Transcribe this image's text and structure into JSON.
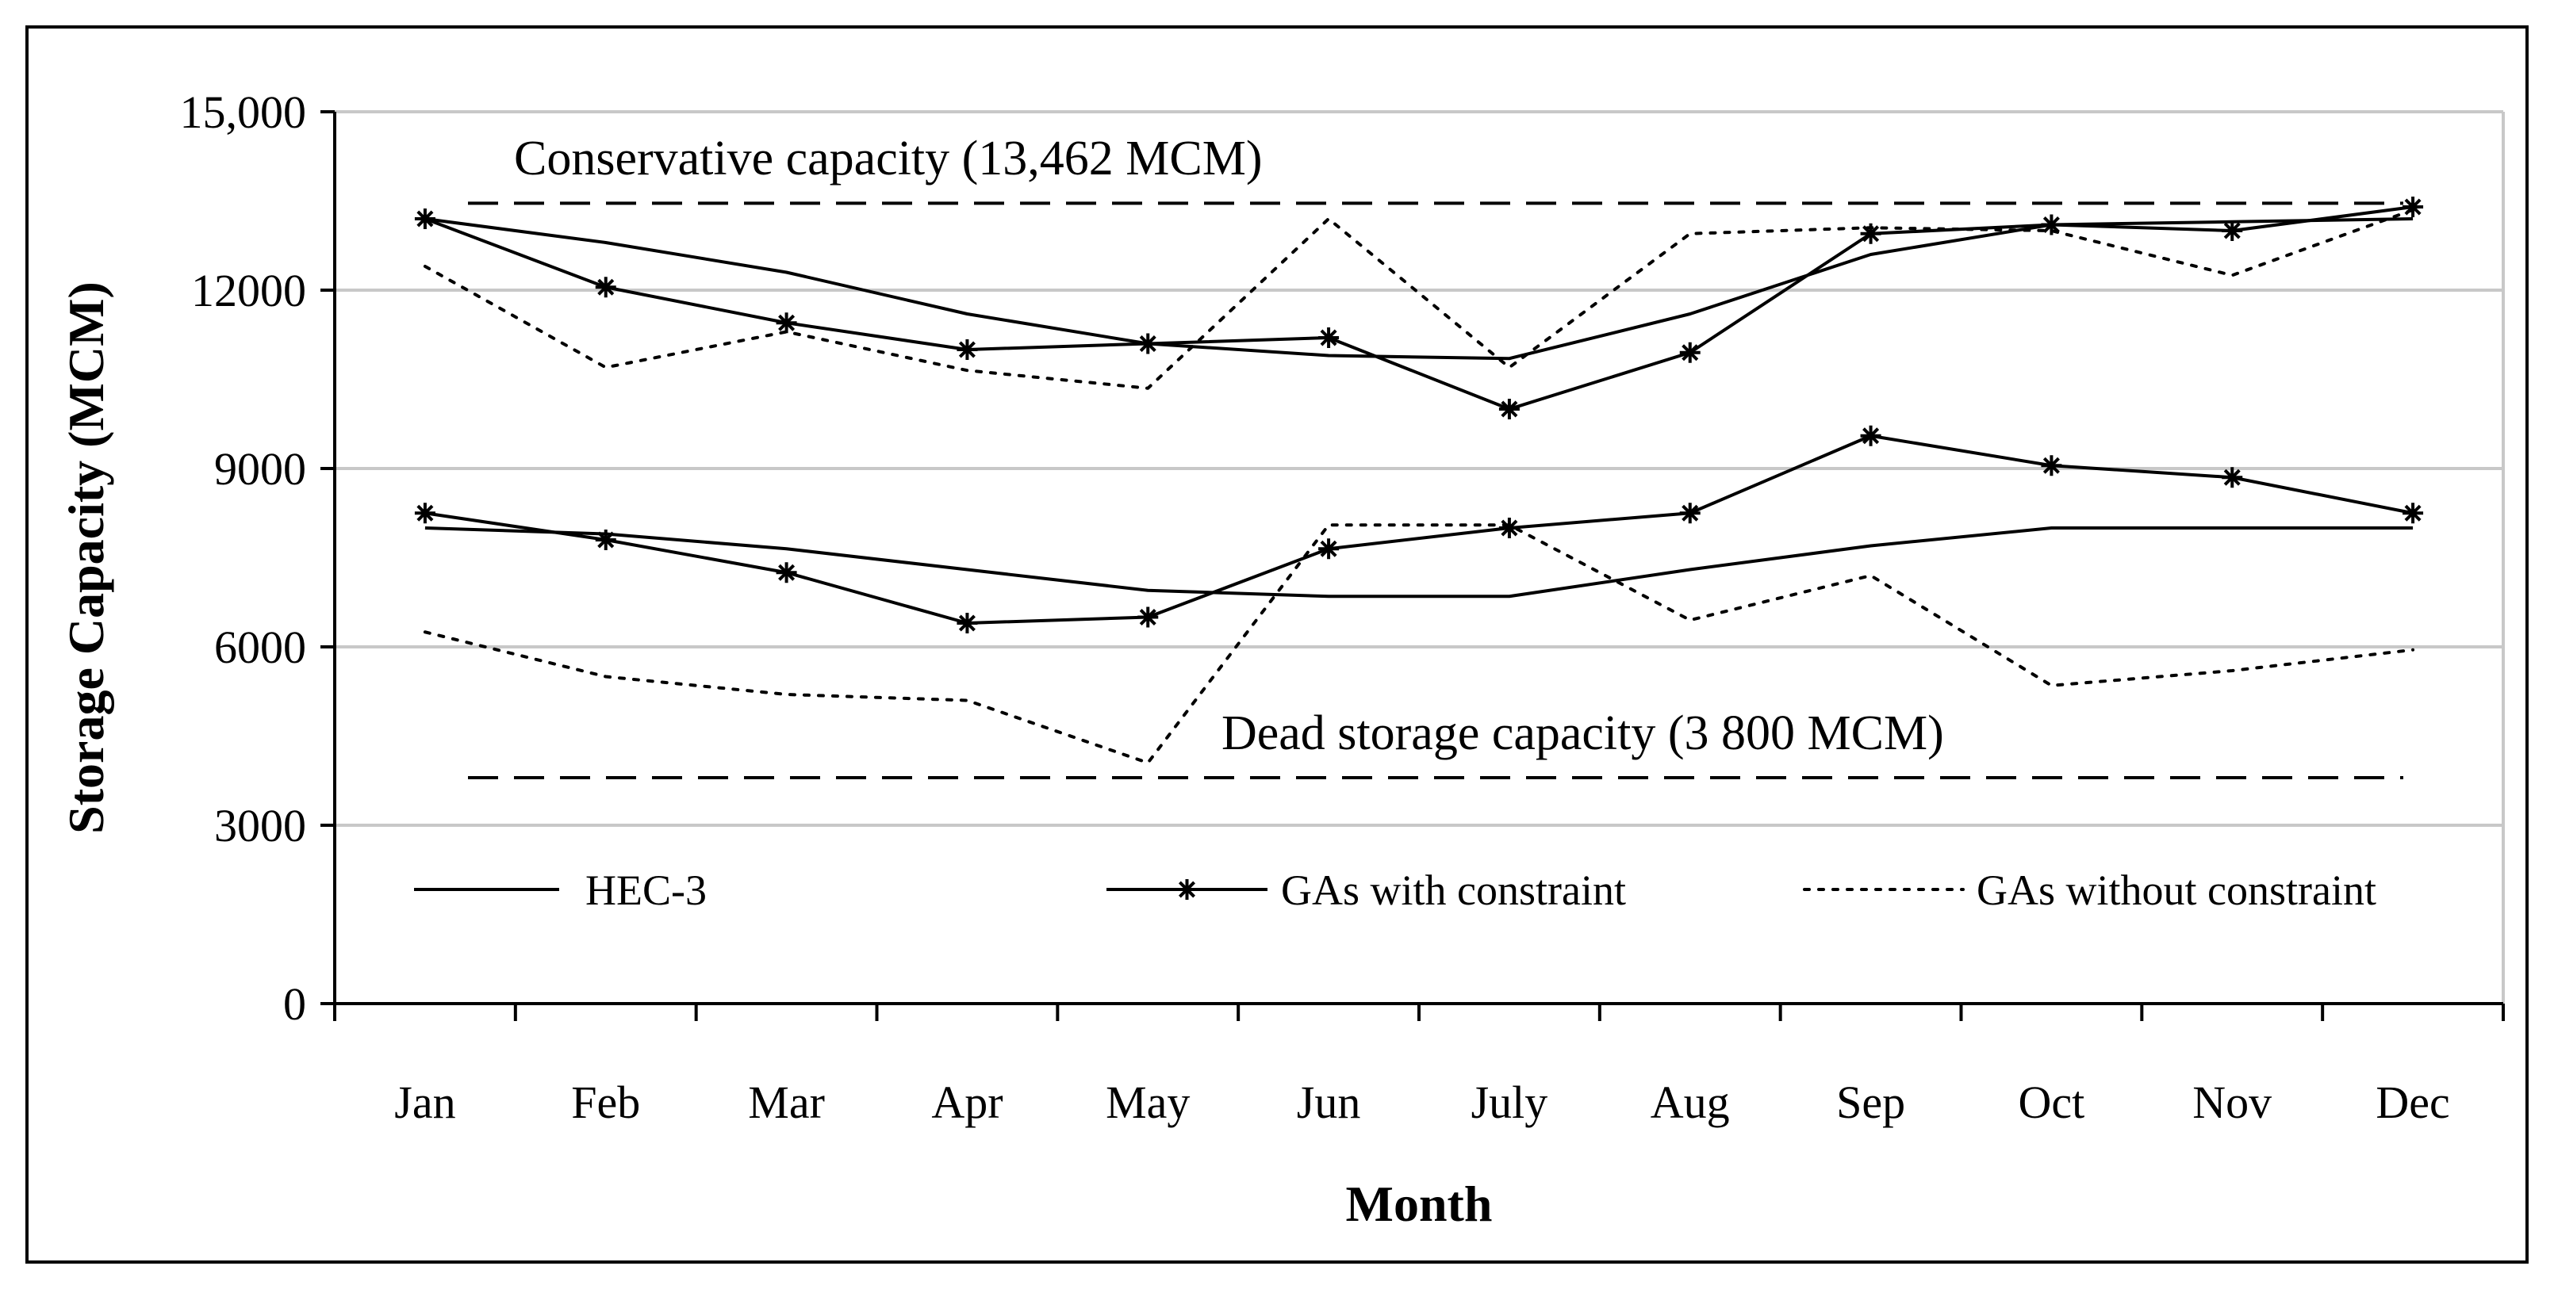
{
  "chart_data": {
    "type": "line",
    "title": "",
    "xlabel": "Month",
    "ylabel": "Storage Capacity (MCM)",
    "categories": [
      "Jan",
      "Feb",
      "Mar",
      "Apr",
      "May",
      "Jun",
      "July",
      "Aug",
      "Sep",
      "Oct",
      "Nov",
      "Dec"
    ],
    "ylim": [
      0,
      15000
    ],
    "yticks": [
      0,
      3000,
      6000,
      9000,
      12000,
      15000
    ],
    "ytick_labels": [
      "0",
      "3000",
      "6000",
      "9000",
      "12000",
      "15,000"
    ],
    "grid": true,
    "legend_position": "inside-bottom",
    "legend": [
      {
        "name": "HEC-3",
        "style": "solid"
      },
      {
        "name": "GAs with constraint",
        "style": "solid-star"
      },
      {
        "name": "GAs without constraint",
        "style": "dotted"
      }
    ],
    "series": [
      {
        "name": "HEC-3",
        "group": "upper",
        "style": "solid",
        "values": [
          13200,
          12800,
          12300,
          11600,
          11100,
          10900,
          10850,
          11600,
          12600,
          13100,
          13150,
          13200
        ]
      },
      {
        "name": "GAs with constraint",
        "group": "upper",
        "style": "solid-star",
        "values": [
          13200,
          12050,
          11450,
          11000,
          11100,
          11200,
          10000,
          10950,
          12950,
          13100,
          13000,
          13400
        ]
      },
      {
        "name": "GAs without constraint",
        "group": "upper",
        "style": "dotted",
        "values": [
          12400,
          10700,
          11300,
          10650,
          10350,
          13200,
          10700,
          12950,
          13050,
          13000,
          12250,
          13350
        ]
      },
      {
        "name": "HEC-3",
        "group": "lower",
        "style": "solid",
        "values": [
          8000,
          7900,
          7650,
          7300,
          6950,
          6850,
          6850,
          7300,
          7700,
          8000,
          8000,
          8000
        ]
      },
      {
        "name": "GAs with constraint",
        "group": "lower",
        "style": "solid-star",
        "values": [
          8250,
          7800,
          7250,
          6400,
          6500,
          7650,
          8000,
          8250,
          9550,
          9050,
          8850,
          8250
        ]
      },
      {
        "name": "GAs without constraint",
        "group": "lower",
        "style": "dotted",
        "values": [
          6250,
          5500,
          5200,
          5100,
          4050,
          8050,
          8050,
          6450,
          7200,
          5350,
          5600,
          5950
        ]
      }
    ],
    "reference_lines": [
      {
        "label": "Conservative capacity (13,462 MCM)",
        "value": 13462,
        "style": "dashed"
      },
      {
        "label": "Dead storage capacity (3 800 MCM)",
        "value": 3800,
        "style": "dashed"
      }
    ]
  }
}
